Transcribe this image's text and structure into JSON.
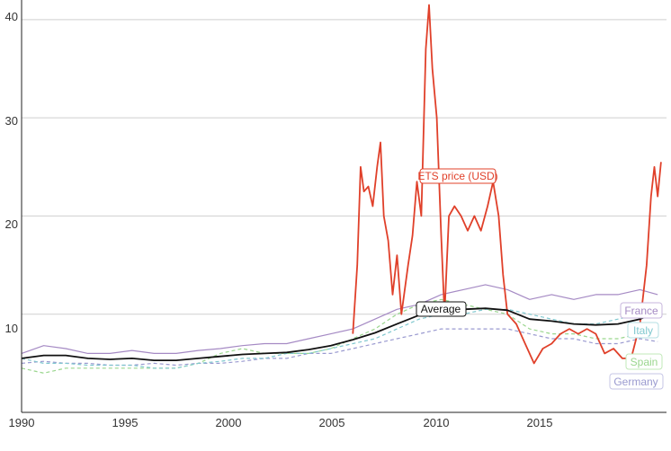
{
  "chart_data": {
    "type": "line",
    "title": "",
    "xlabel": "",
    "ylabel": "",
    "xlim": [
      1990,
      2019.2
    ],
    "ylim": [
      0,
      42
    ],
    "grid": "horizontal",
    "x_ticks": [
      "1990",
      "1995",
      "2000",
      "2005",
      "2010",
      "2015"
    ],
    "y_ticks": [
      "10",
      "20",
      "30",
      "40"
    ],
    "colors": {
      "France": "#a58ac4",
      "Italy": "#80c8cf",
      "Spain": "#9ad68e",
      "Germany": "#9a9ad0",
      "Average": "#111111",
      "ETS price (USD)": "#e0402a"
    },
    "series": [
      {
        "name": "France",
        "style": "solid",
        "points": [
          [
            1990,
            6.0
          ],
          [
            1991,
            6.8
          ],
          [
            1992,
            6.5
          ],
          [
            1993,
            6.0
          ],
          [
            1994,
            6.0
          ],
          [
            1995,
            6.3
          ],
          [
            1996,
            6.0
          ],
          [
            1997,
            6.0
          ],
          [
            1998,
            6.3
          ],
          [
            1999,
            6.5
          ],
          [
            2000,
            6.8
          ],
          [
            2001,
            7.0
          ],
          [
            2002,
            7.0
          ],
          [
            2003,
            7.5
          ],
          [
            2004,
            8.0
          ],
          [
            2005,
            8.5
          ],
          [
            2006,
            9.5
          ],
          [
            2007,
            10.5
          ],
          [
            2008,
            11.0
          ],
          [
            2009,
            12.0
          ],
          [
            2010,
            12.5
          ],
          [
            2011,
            13.0
          ],
          [
            2012,
            12.5
          ],
          [
            2013,
            11.5
          ],
          [
            2014,
            12.0
          ],
          [
            2015,
            11.5
          ],
          [
            2016,
            12.0
          ],
          [
            2017,
            12.0
          ],
          [
            2018,
            12.5
          ],
          [
            2018.8,
            12.0
          ]
        ]
      },
      {
        "name": "Italy",
        "style": "dashed",
        "points": [
          [
            1990,
            5.5
          ],
          [
            1991,
            5.0
          ],
          [
            1992,
            5.0
          ],
          [
            1993,
            4.8
          ],
          [
            1994,
            4.8
          ],
          [
            1995,
            4.8
          ],
          [
            1996,
            4.5
          ],
          [
            1997,
            4.5
          ],
          [
            1998,
            5.0
          ],
          [
            1999,
            5.2
          ],
          [
            2000,
            5.5
          ],
          [
            2001,
            5.5
          ],
          [
            2002,
            6.0
          ],
          [
            2003,
            6.0
          ],
          [
            2004,
            6.5
          ],
          [
            2005,
            7.0
          ],
          [
            2006,
            7.5
          ],
          [
            2007,
            8.5
          ],
          [
            2008,
            9.5
          ],
          [
            2009,
            10.0
          ],
          [
            2010,
            10.0
          ],
          [
            2011,
            10.5
          ],
          [
            2012,
            10.5
          ],
          [
            2013,
            10.0
          ],
          [
            2014,
            9.5
          ],
          [
            2015,
            9.0
          ],
          [
            2016,
            9.0
          ],
          [
            2017,
            9.5
          ],
          [
            2018,
            10.0
          ],
          [
            2018.8,
            10.5
          ]
        ]
      },
      {
        "name": "Spain",
        "style": "dashed",
        "points": [
          [
            1990,
            4.5
          ],
          [
            1991,
            4.0
          ],
          [
            1992,
            4.5
          ],
          [
            1993,
            4.5
          ],
          [
            1994,
            4.5
          ],
          [
            1995,
            4.5
          ],
          [
            1996,
            4.5
          ],
          [
            1997,
            4.5
          ],
          [
            1998,
            5.0
          ],
          [
            1999,
            6.0
          ],
          [
            2000,
            6.5
          ],
          [
            2001,
            6.0
          ],
          [
            2002,
            6.0
          ],
          [
            2003,
            6.0
          ],
          [
            2004,
            6.5
          ],
          [
            2005,
            7.5
          ],
          [
            2006,
            8.5
          ],
          [
            2007,
            10.0
          ],
          [
            2008,
            11.0
          ],
          [
            2009,
            11.5
          ],
          [
            2010,
            11.0
          ],
          [
            2011,
            10.5
          ],
          [
            2012,
            10.0
          ],
          [
            2013,
            8.5
          ],
          [
            2014,
            8.0
          ],
          [
            2015,
            8.0
          ],
          [
            2016,
            7.5
          ],
          [
            2017,
            7.5
          ],
          [
            2018,
            8.0
          ],
          [
            2018.8,
            8.0
          ]
        ]
      },
      {
        "name": "Germany",
        "style": "dashed",
        "points": [
          [
            1990,
            5.0
          ],
          [
            1991,
            5.2
          ],
          [
            1992,
            5.0
          ],
          [
            1993,
            5.0
          ],
          [
            1994,
            4.8
          ],
          [
            1995,
            4.8
          ],
          [
            1996,
            5.0
          ],
          [
            1997,
            4.8
          ],
          [
            1998,
            5.0
          ],
          [
            1999,
            5.0
          ],
          [
            2000,
            5.2
          ],
          [
            2001,
            5.5
          ],
          [
            2002,
            5.5
          ],
          [
            2003,
            6.0
          ],
          [
            2004,
            6.0
          ],
          [
            2005,
            6.5
          ],
          [
            2006,
            7.0
          ],
          [
            2007,
            7.5
          ],
          [
            2008,
            8.0
          ],
          [
            2009,
            8.5
          ],
          [
            2010,
            8.5
          ],
          [
            2011,
            8.5
          ],
          [
            2012,
            8.5
          ],
          [
            2013,
            8.0
          ],
          [
            2014,
            7.5
          ],
          [
            2015,
            7.5
          ],
          [
            2016,
            7.0
          ],
          [
            2017,
            7.0
          ],
          [
            2018,
            7.5
          ],
          [
            2018.8,
            7.2
          ]
        ]
      },
      {
        "name": "Average",
        "style": "solid",
        "points": [
          [
            1990,
            5.5
          ],
          [
            1991,
            5.8
          ],
          [
            1992,
            5.8
          ],
          [
            1993,
            5.5
          ],
          [
            1994,
            5.4
          ],
          [
            1995,
            5.5
          ],
          [
            1996,
            5.3
          ],
          [
            1997,
            5.3
          ],
          [
            1998,
            5.5
          ],
          [
            1999,
            5.7
          ],
          [
            2000,
            5.9
          ],
          [
            2001,
            6.0
          ],
          [
            2002,
            6.1
          ],
          [
            2003,
            6.4
          ],
          [
            2004,
            6.8
          ],
          [
            2005,
            7.4
          ],
          [
            2006,
            8.1
          ],
          [
            2007,
            9.0
          ],
          [
            2008,
            9.9
          ],
          [
            2009,
            10.5
          ],
          [
            2010,
            10.5
          ],
          [
            2011,
            10.6
          ],
          [
            2012,
            10.4
          ],
          [
            2013,
            9.5
          ],
          [
            2014,
            9.3
          ],
          [
            2015,
            9.0
          ],
          [
            2016,
            8.9
          ],
          [
            2017,
            9.0
          ],
          [
            2018,
            9.5
          ],
          [
            2018.8,
            10.2
          ]
        ]
      },
      {
        "name": "ETS price (USD)",
        "style": "solid",
        "points": [
          [
            2005.0,
            8.0
          ],
          [
            2005.2,
            15.0
          ],
          [
            2005.35,
            25.0
          ],
          [
            2005.5,
            22.5
          ],
          [
            2005.7,
            23.0
          ],
          [
            2005.9,
            21.0
          ],
          [
            2006.1,
            25.0
          ],
          [
            2006.25,
            27.5
          ],
          [
            2006.4,
            20.0
          ],
          [
            2006.6,
            17.5
          ],
          [
            2006.8,
            12.0
          ],
          [
            2007.0,
            16.0
          ],
          [
            2007.2,
            10.0
          ],
          [
            2007.5,
            15.0
          ],
          [
            2007.7,
            18.0
          ],
          [
            2007.9,
            23.5
          ],
          [
            2008.1,
            20.0
          ],
          [
            2008.3,
            37.0
          ],
          [
            2008.45,
            41.5
          ],
          [
            2008.6,
            35.0
          ],
          [
            2008.8,
            30.0
          ],
          [
            2009.0,
            18.0
          ],
          [
            2009.15,
            10.0
          ],
          [
            2009.35,
            20.0
          ],
          [
            2009.6,
            21.0
          ],
          [
            2009.9,
            20.0
          ],
          [
            2010.2,
            18.5
          ],
          [
            2010.5,
            20.0
          ],
          [
            2010.8,
            18.5
          ],
          [
            2011.1,
            21.0
          ],
          [
            2011.35,
            23.5
          ],
          [
            2011.6,
            20.0
          ],
          [
            2011.8,
            14.0
          ],
          [
            2012.0,
            10.0
          ],
          [
            2012.4,
            9.0
          ],
          [
            2012.8,
            7.0
          ],
          [
            2013.2,
            5.0
          ],
          [
            2013.6,
            6.5
          ],
          [
            2014.0,
            7.0
          ],
          [
            2014.4,
            8.0
          ],
          [
            2014.8,
            8.5
          ],
          [
            2015.2,
            8.0
          ],
          [
            2015.6,
            8.5
          ],
          [
            2016.0,
            8.0
          ],
          [
            2016.4,
            6.0
          ],
          [
            2016.8,
            6.5
          ],
          [
            2017.2,
            5.5
          ],
          [
            2017.6,
            5.5
          ],
          [
            2018.0,
            9.0
          ],
          [
            2018.3,
            15.0
          ],
          [
            2018.5,
            22.0
          ],
          [
            2018.65,
            25.0
          ],
          [
            2018.8,
            22.0
          ],
          [
            2018.95,
            25.5
          ]
        ]
      }
    ]
  },
  "labels": {
    "ets": "ETS price (USD)",
    "average": "Average",
    "france": "France",
    "italy": "Italy",
    "spain": "Spain",
    "germany": "Germany"
  }
}
